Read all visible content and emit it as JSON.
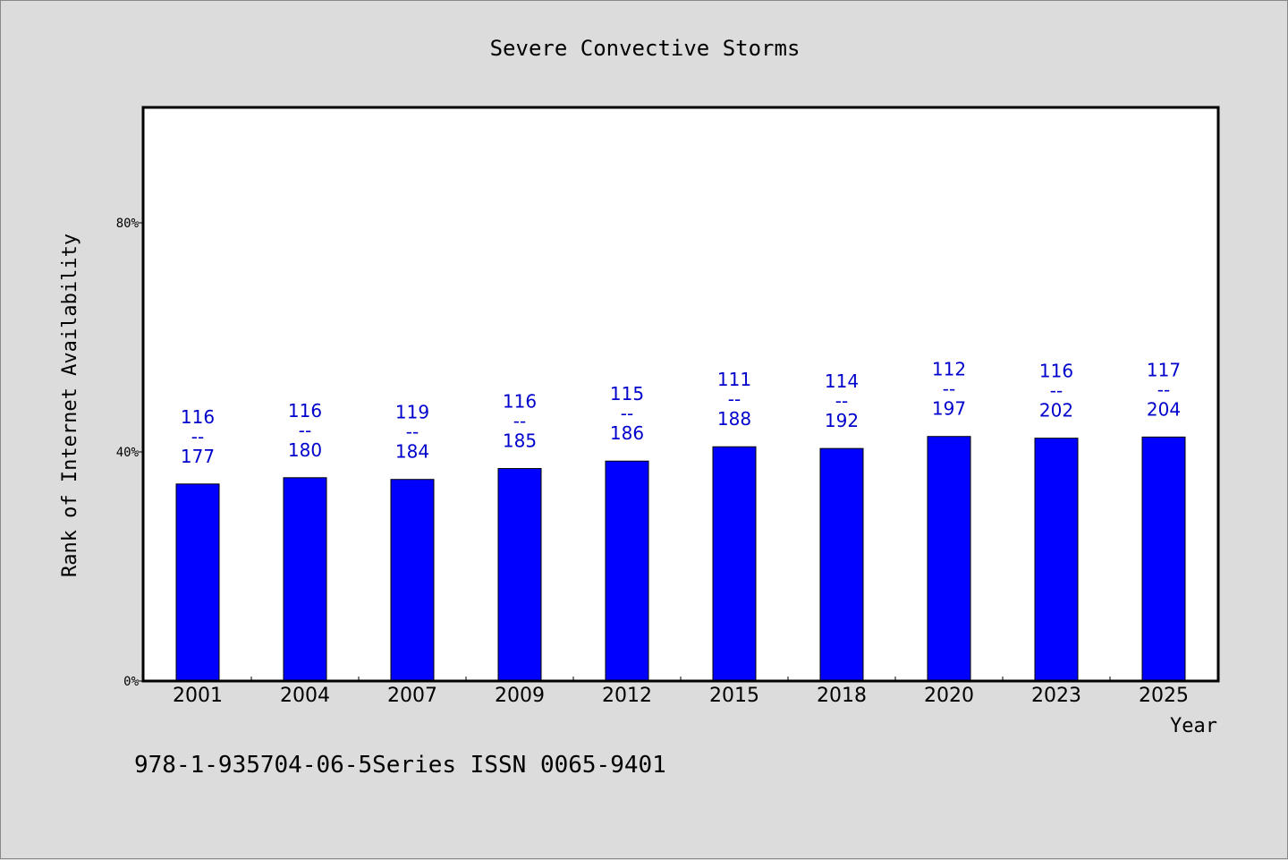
{
  "chart_data": {
    "type": "bar",
    "title": "Severe Convective Storms",
    "xlabel": "Year",
    "ylabel": "Rank of Internet Availability",
    "categories": [
      "2001",
      "2004",
      "2007",
      "2009",
      "2012",
      "2015",
      "2018",
      "2020",
      "2023",
      "2025"
    ],
    "values": [
      34.4,
      35.5,
      35.2,
      37.1,
      38.4,
      40.9,
      40.6,
      42.7,
      42.4,
      42.6
    ],
    "data_labels": [
      {
        "top": "116",
        "sep": "--",
        "bottom": "177"
      },
      {
        "top": "116",
        "sep": "--",
        "bottom": "180"
      },
      {
        "top": "119",
        "sep": "--",
        "bottom": "184"
      },
      {
        "top": "116",
        "sep": "--",
        "bottom": "185"
      },
      {
        "top": "115",
        "sep": "--",
        "bottom": "186"
      },
      {
        "top": "111",
        "sep": "--",
        "bottom": "188"
      },
      {
        "top": "114",
        "sep": "--",
        "bottom": "192"
      },
      {
        "top": "112",
        "sep": "--",
        "bottom": "197"
      },
      {
        "top": "116",
        "sep": "--",
        "bottom": "202"
      },
      {
        "top": "117",
        "sep": "--",
        "bottom": "204"
      }
    ],
    "yticks": [
      0,
      40,
      80
    ],
    "ytick_labels": [
      "0%",
      "40%",
      "80%"
    ],
    "ylim": [
      0,
      100
    ],
    "grid": false,
    "legend": "none",
    "bar_color": "#0000ff",
    "label_color": "#0000cc"
  },
  "footer": {
    "text": "978-1-935704-06-5Series ISSN 0065-9401"
  }
}
